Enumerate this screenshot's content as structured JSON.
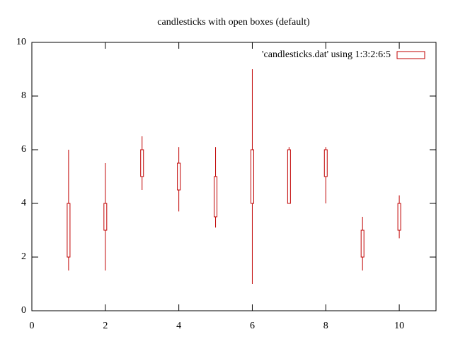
{
  "chart_data": {
    "type": "candlestick",
    "title": "candlesticks with open boxes (default)",
    "xlim": [
      0,
      11
    ],
    "xticks": [
      0,
      2,
      4,
      6,
      8,
      10
    ],
    "ylim": [
      0,
      10
    ],
    "yticks": [
      0,
      2,
      4,
      6,
      8,
      10
    ],
    "legend": "top-right",
    "series": [
      {
        "name": "'candlesticks.dat' using 1:3:2:6:5",
        "color": "#c00000",
        "x": [
          1,
          2,
          3,
          4,
          5,
          6,
          7,
          8,
          9,
          10
        ],
        "box_low": [
          2,
          3,
          5,
          4.5,
          3.5,
          4,
          4,
          5,
          2,
          3
        ],
        "box_high": [
          4,
          4,
          6,
          5.5,
          5,
          6,
          6,
          6,
          3,
          4
        ],
        "whisker_low": [
          1.5,
          1.5,
          4.5,
          3.7,
          3.1,
          1,
          4,
          4,
          1.5,
          2.7
        ],
        "whisker_high": [
          6,
          5.5,
          6.5,
          6.1,
          6.1,
          9,
          6.1,
          6.1,
          3.5,
          4.3
        ]
      }
    ]
  }
}
